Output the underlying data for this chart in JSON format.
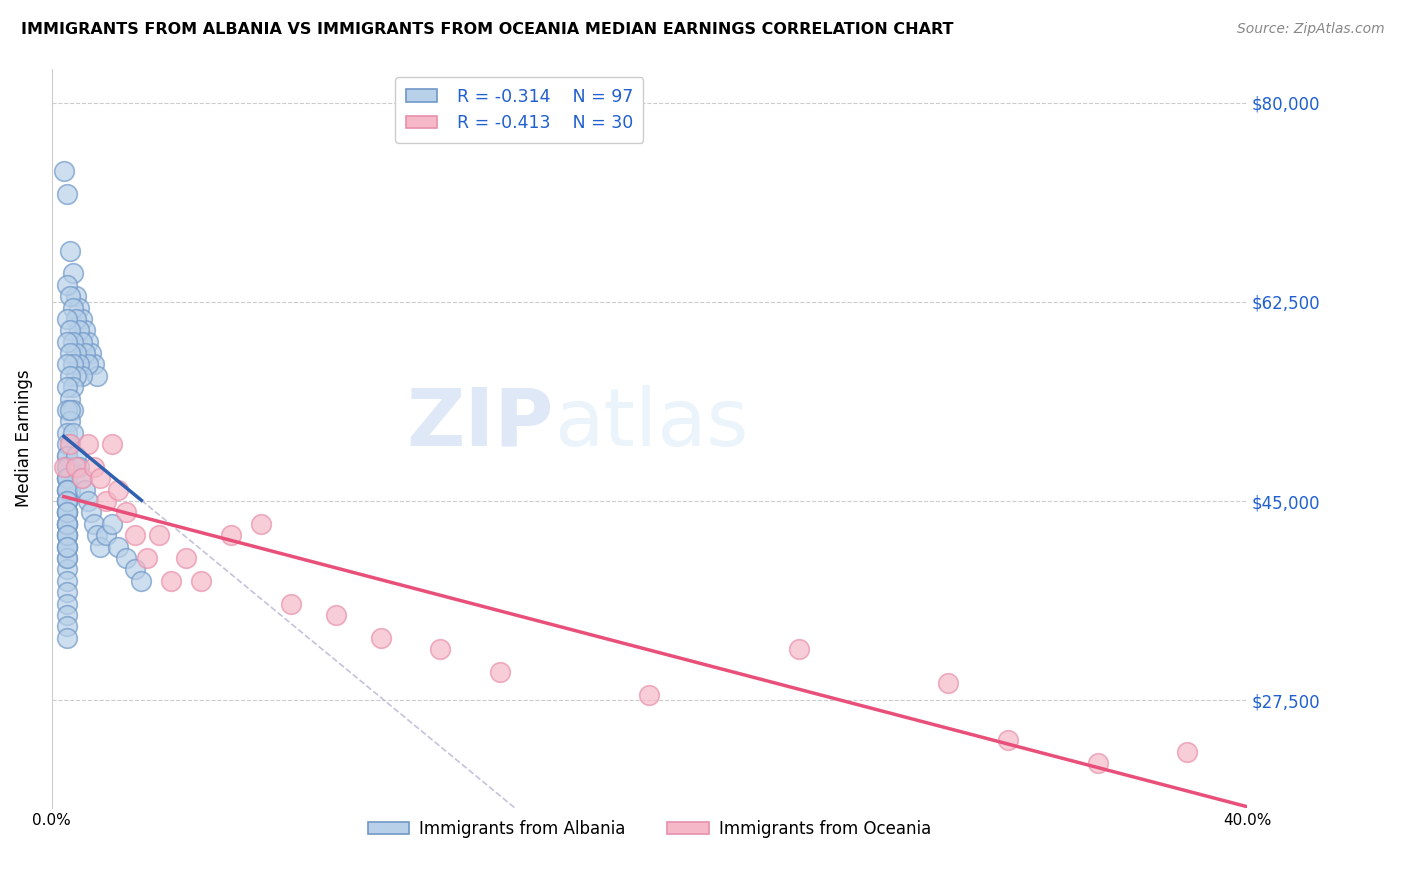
{
  "title": "IMMIGRANTS FROM ALBANIA VS IMMIGRANTS FROM OCEANIA MEDIAN EARNINGS CORRELATION CHART",
  "source": "Source: ZipAtlas.com",
  "ylabel": "Median Earnings",
  "yticks": [
    27500,
    45000,
    62500,
    80000
  ],
  "ytick_labels": [
    "$27,500",
    "$45,000",
    "$62,500",
    "$80,000"
  ],
  "xmin": 0.0,
  "xmax": 0.4,
  "ymin": 18000,
  "ymax": 83000,
  "legend_r1": "R = -0.314",
  "legend_n1": "N = 97",
  "legend_r2": "R = -0.413",
  "legend_n2": "N = 30",
  "legend_label1": "Immigrants from Albania",
  "legend_label2": "Immigrants from Oceania",
  "blue_fill_color": "#b8d0e8",
  "pink_fill_color": "#f5b8c8",
  "blue_line_color": "#3060b0",
  "pink_line_color": "#e8507a",
  "blue_dot_edge": "#7098c8",
  "pink_dot_edge": "#e890aa",
  "rv_color": "#2060d0",
  "albania_x": [
    0.004,
    0.005,
    0.006,
    0.007,
    0.008,
    0.009,
    0.01,
    0.011,
    0.012,
    0.013,
    0.014,
    0.015,
    0.005,
    0.006,
    0.007,
    0.008,
    0.009,
    0.01,
    0.011,
    0.012,
    0.005,
    0.006,
    0.007,
    0.008,
    0.009,
    0.01,
    0.005,
    0.006,
    0.007,
    0.008,
    0.005,
    0.006,
    0.007,
    0.005,
    0.006,
    0.007,
    0.005,
    0.006,
    0.005,
    0.006,
    0.005,
    0.006,
    0.005,
    0.006,
    0.005,
    0.005,
    0.005,
    0.005,
    0.005,
    0.005,
    0.005,
    0.005,
    0.005,
    0.005,
    0.005,
    0.005,
    0.005,
    0.005,
    0.005,
    0.005,
    0.005,
    0.005,
    0.005,
    0.005,
    0.005,
    0.005,
    0.005,
    0.005,
    0.005,
    0.005,
    0.005,
    0.005,
    0.005,
    0.005,
    0.005,
    0.005,
    0.005,
    0.005,
    0.005,
    0.005,
    0.006,
    0.007,
    0.008,
    0.009,
    0.01,
    0.011,
    0.012,
    0.013,
    0.014,
    0.015,
    0.016,
    0.018,
    0.02,
    0.022,
    0.025,
    0.028,
    0.03
  ],
  "albania_y": [
    74000,
    72000,
    67000,
    65000,
    63000,
    62000,
    61000,
    60000,
    59000,
    58000,
    57000,
    56000,
    64000,
    63000,
    62000,
    61000,
    60000,
    59000,
    58000,
    57000,
    61000,
    60000,
    59000,
    58000,
    57000,
    56000,
    59000,
    58000,
    57000,
    56000,
    57000,
    56000,
    55000,
    55000,
    54000,
    53000,
    53000,
    52000,
    51000,
    50000,
    49000,
    48000,
    47000,
    46000,
    45000,
    44000,
    43000,
    42000,
    41000,
    40000,
    39000,
    38000,
    37000,
    36000,
    35000,
    34000,
    33000,
    50000,
    49000,
    48000,
    47000,
    46000,
    45000,
    44000,
    43000,
    42000,
    41000,
    40000,
    48000,
    47000,
    46000,
    45000,
    44000,
    43000,
    46000,
    45000,
    44000,
    43000,
    42000,
    41000,
    53000,
    51000,
    49000,
    48000,
    47000,
    46000,
    45000,
    44000,
    43000,
    42000,
    41000,
    42000,
    43000,
    41000,
    40000,
    39000,
    38000
  ],
  "oceania_x": [
    0.004,
    0.006,
    0.008,
    0.01,
    0.012,
    0.014,
    0.016,
    0.018,
    0.02,
    0.022,
    0.025,
    0.028,
    0.032,
    0.036,
    0.04,
    0.045,
    0.05,
    0.06,
    0.07,
    0.08,
    0.095,
    0.11,
    0.13,
    0.15,
    0.2,
    0.25,
    0.3,
    0.32,
    0.35,
    0.38
  ],
  "oceania_y": [
    48000,
    50000,
    48000,
    47000,
    50000,
    48000,
    47000,
    45000,
    50000,
    46000,
    44000,
    42000,
    40000,
    42000,
    38000,
    40000,
    38000,
    42000,
    43000,
    36000,
    35000,
    33000,
    32000,
    30000,
    28000,
    32000,
    29000,
    24000,
    22000,
    23000
  ]
}
